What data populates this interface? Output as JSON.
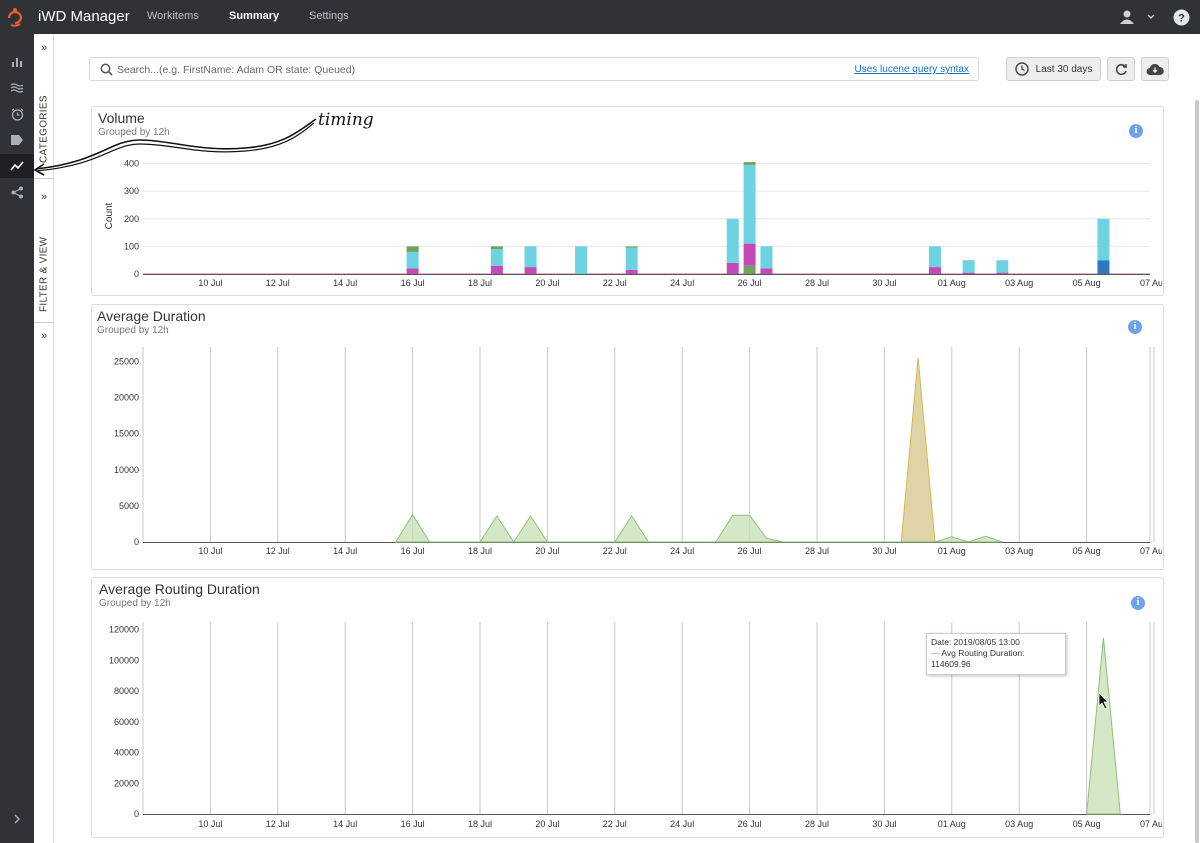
{
  "app": {
    "title": "iWD Manager"
  },
  "nav": {
    "tabs": [
      "Workitems",
      "Summary",
      "Settings"
    ],
    "active": "Summary"
  },
  "left_nav": [
    "bar-chart-icon",
    "stream-icon",
    "alarm-icon",
    "tag-icon",
    "trend-icon",
    "share-icon"
  ],
  "side_panel": {
    "categories_label": "CATEGORIES",
    "filter_label": "FILTER & VIEW"
  },
  "annotation": {
    "text": "timing"
  },
  "search": {
    "placeholder": "Search...(e.g. FirstName: Adam OR state: Queued)",
    "value": "",
    "lucene_link": "Uses lucene query syntax"
  },
  "toolbar": {
    "range_label": "Last 30 days"
  },
  "panels": {
    "volume": {
      "title": "Volume",
      "subtitle": "Grouped by 12h"
    },
    "avg_duration": {
      "title": "Average Duration",
      "subtitle": "Grouped by 12h"
    },
    "avg_routing": {
      "title": "Average Routing Duration",
      "subtitle": "Grouped by 12h"
    }
  },
  "tooltip": {
    "date": "Date: 2019/08/05 13:00",
    "series": "Avg Routing Duration:",
    "value": "114609.96"
  },
  "colors": {
    "cyan": "#6dd3e3",
    "magenta": "#c44ab8",
    "green": "#6fa35a",
    "blue": "#2f78c0",
    "yellow_area": "#d4c68a",
    "green_area": "#c5dfb4"
  },
  "chart_data": [
    {
      "type": "bar",
      "title": "Volume",
      "subtitle": "Grouped by 12h",
      "ylabel": "Count",
      "ylim": [
        0,
        420
      ],
      "y_ticks": [
        0,
        100,
        200,
        300,
        400
      ],
      "x_ticks": [
        "10 Jul",
        "12 Jul",
        "14 Jul",
        "16 Jul",
        "18 Jul",
        "20 Jul",
        "22 Jul",
        "24 Jul",
        "26 Jul",
        "28 Jul",
        "30 Jul",
        "01 Aug",
        "03 Aug",
        "05 Aug",
        "07 Aug"
      ],
      "x_start_day": 8,
      "bars": [
        {
          "day": 16.0,
          "segments": [
            {
              "c": "magenta",
              "v": 20
            },
            {
              "c": "cyan",
              "v": 60
            },
            {
              "c": "green",
              "v": 20
            }
          ]
        },
        {
          "day": 18.5,
          "segments": [
            {
              "c": "magenta",
              "v": 30
            },
            {
              "c": "cyan",
              "v": 60
            },
            {
              "c": "green",
              "v": 10
            }
          ]
        },
        {
          "day": 19.5,
          "segments": [
            {
              "c": "magenta",
              "v": 25
            },
            {
              "c": "cyan",
              "v": 75
            }
          ]
        },
        {
          "day": 21.0,
          "segments": [
            {
              "c": "cyan",
              "v": 100
            }
          ]
        },
        {
          "day": 22.5,
          "segments": [
            {
              "c": "magenta",
              "v": 15
            },
            {
              "c": "cyan",
              "v": 80
            },
            {
              "c": "green",
              "v": 5
            }
          ]
        },
        {
          "day": 25.5,
          "segments": [
            {
              "c": "magenta",
              "v": 40
            },
            {
              "c": "cyan",
              "v": 160
            }
          ]
        },
        {
          "day": 26.0,
          "segments": [
            {
              "c": "green",
              "v": 30
            },
            {
              "c": "magenta",
              "v": 80
            },
            {
              "c": "cyan",
              "v": 285
            },
            {
              "c": "green",
              "v": 10
            }
          ]
        },
        {
          "day": 26.5,
          "segments": [
            {
              "c": "magenta",
              "v": 20
            },
            {
              "c": "cyan",
              "v": 80
            }
          ]
        },
        {
          "day": 31.5,
          "segments": [
            {
              "c": "magenta",
              "v": 25
            },
            {
              "c": "cyan",
              "v": 75
            }
          ]
        },
        {
          "day": 32.5,
          "segments": [
            {
              "c": "magenta",
              "v": 5
            },
            {
              "c": "cyan",
              "v": 45
            }
          ]
        },
        {
          "day": 33.5,
          "segments": [
            {
              "c": "magenta",
              "v": 5
            },
            {
              "c": "cyan",
              "v": 45
            }
          ]
        },
        {
          "day": 36.5,
          "segments": [
            {
              "c": "blue",
              "v": 50
            },
            {
              "c": "cyan",
              "v": 150
            }
          ]
        }
      ]
    },
    {
      "type": "area",
      "title": "Average Duration",
      "subtitle": "Grouped by 12h",
      "ylim": [
        0,
        27000
      ],
      "y_ticks": [
        0,
        5000,
        10000,
        15000,
        20000,
        25000
      ],
      "x_ticks": [
        "10 Jul",
        "12 Jul",
        "14 Jul",
        "16 Jul",
        "18 Jul",
        "20 Jul",
        "22 Jul",
        "24 Jul",
        "26 Jul",
        "28 Jul",
        "30 Jul",
        "01 Aug",
        "03 Aug",
        "05 Aug",
        "07 Aug"
      ],
      "x_start_day": 8,
      "series": [
        {
          "name": "",
          "color": "yellow",
          "points": [
            [
              30.5,
              0
            ],
            [
              31.0,
              25500
            ],
            [
              31.5,
              0
            ]
          ]
        },
        {
          "name": "",
          "color": "green",
          "points": [
            [
              15.5,
              0
            ],
            [
              16.0,
              3800
            ],
            [
              16.5,
              0
            ],
            [
              18.0,
              0
            ],
            [
              18.5,
              3600
            ],
            [
              19.0,
              0
            ],
            [
              19.5,
              3600
            ],
            [
              20.0,
              0
            ],
            [
              22.0,
              0
            ],
            [
              22.5,
              3600
            ],
            [
              23.0,
              0
            ],
            [
              25.0,
              0
            ],
            [
              25.5,
              3700
            ],
            [
              26.0,
              3700
            ],
            [
              26.5,
              500
            ],
            [
              27.0,
              0
            ],
            [
              31.5,
              0
            ],
            [
              32.0,
              700
            ],
            [
              32.5,
              0
            ],
            [
              33.0,
              800
            ],
            [
              33.5,
              0
            ]
          ]
        }
      ]
    },
    {
      "type": "area",
      "title": "Average Routing Duration",
      "subtitle": "Grouped by 12h",
      "ylim": [
        0,
        125000
      ],
      "y_ticks": [
        0,
        20000,
        40000,
        60000,
        80000,
        100000,
        120000
      ],
      "x_ticks": [
        "10 Jul",
        "12 Jul",
        "14 Jul",
        "16 Jul",
        "18 Jul",
        "20 Jul",
        "22 Jul",
        "24 Jul",
        "26 Jul",
        "28 Jul",
        "30 Jul",
        "01 Aug",
        "03 Aug",
        "05 Aug",
        "07 Aug"
      ],
      "x_start_day": 8,
      "series": [
        {
          "name": "Avg Routing Duration",
          "color": "green",
          "points": [
            [
              36.0,
              0
            ],
            [
              36.5,
              114609.96
            ],
            [
              37.0,
              0
            ]
          ]
        }
      ]
    }
  ]
}
